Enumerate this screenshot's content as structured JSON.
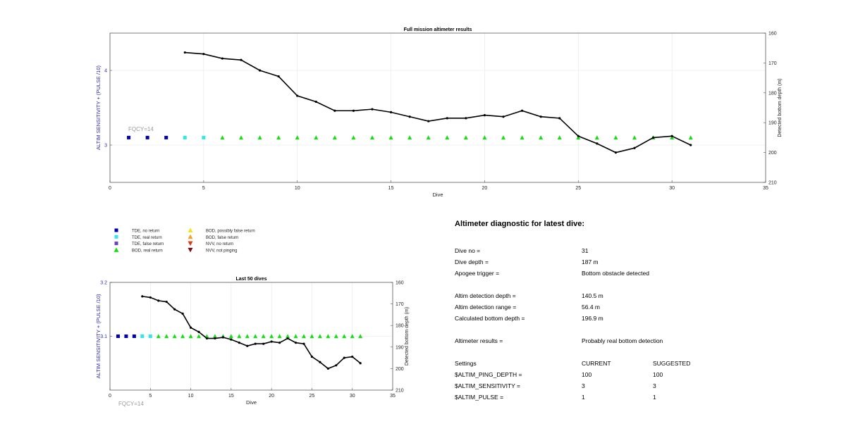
{
  "charts": {
    "main": {
      "title": "Full mission altimeter results",
      "xlabel": "Dive",
      "ylabel_left": "ALTIM SENSITIVITY + (PULSE /10)",
      "ylabel_right": "Detected bottom depth (m)",
      "annotation": "FQCY=14",
      "x_ticks": [
        "0",
        "5",
        "10",
        "15",
        "20",
        "25",
        "30",
        "35"
      ],
      "y_left_ticks": [
        "3",
        "4"
      ],
      "y_right_ticks": [
        "160",
        "170",
        "180",
        "190",
        "200",
        "210"
      ]
    },
    "small": {
      "title": "Last 50 dives",
      "xlabel": "Dive",
      "ylabel_left": "ALTIM SENSITIVITY + (PULSE /10)",
      "ylabel_right": "Detected bottom depth (m)",
      "annotation": "FQCY=14",
      "x_ticks": [
        "0",
        "5",
        "10",
        "15",
        "20",
        "25",
        "30",
        "35"
      ],
      "y_left_ticks": [
        "3.1",
        "3.2"
      ],
      "y_right_ticks": [
        "160",
        "170",
        "180",
        "190",
        "200",
        "210"
      ]
    }
  },
  "legend": [
    {
      "label": "TDE, no return",
      "marker": "square",
      "color": "#0000b4"
    },
    {
      "label": "TDE, real return",
      "marker": "square",
      "color": "#2fe8e8"
    },
    {
      "label": "TDE, false return",
      "marker": "square",
      "color": "#6a3fc8"
    },
    {
      "label": "BOD, real return",
      "marker": "triangle-up",
      "color": "#17dd17"
    },
    {
      "label": "BOD, possibly false return",
      "marker": "triangle-up",
      "color": "#f2e11e"
    },
    {
      "label": "BOD, false return",
      "marker": "triangle-up",
      "color": "#f5a31b"
    },
    {
      "label": "NVV, no return",
      "marker": "triangle-down",
      "color": "#d83a18"
    },
    {
      "label": "NVV, not pinging",
      "marker": "triangle-down",
      "color": "#7a1010"
    }
  ],
  "chart_data": [
    {
      "type": "scatter",
      "title": "Full mission altimeter results",
      "xlabel": "Dive",
      "ylabel": "ALTIM SENSITIVITY + (PULSE /10)",
      "ylabel_right": "Detected bottom depth (m)",
      "xlim": [
        0,
        35
      ],
      "ylim_right": [
        160,
        210
      ],
      "y_right_reversed": true,
      "grid": true,
      "series": [
        {
          "name": "TDE, no return",
          "color": "#0000b4",
          "marker": "square",
          "x": [
            1,
            2,
            3
          ],
          "y": [
            3.1,
            3.1,
            3.1
          ]
        },
        {
          "name": "TDE, real return",
          "color": "#2fe8e8",
          "marker": "square",
          "x": [
            4,
            5
          ],
          "y": [
            3.1,
            3.1
          ]
        },
        {
          "name": "BOD, real return",
          "color": "#17dd17",
          "marker": "triangle-up",
          "x": [
            6,
            7,
            8,
            9,
            10,
            11,
            12,
            13,
            14,
            15,
            16,
            17,
            18,
            19,
            20,
            21,
            22,
            23,
            24,
            25,
            26,
            27,
            28,
            29,
            30,
            31
          ],
          "y": [
            3.1,
            3.1,
            3.1,
            3.1,
            3.1,
            3.1,
            3.1,
            3.1,
            3.1,
            3.1,
            3.1,
            3.1,
            3.1,
            3.1,
            3.1,
            3.1,
            3.1,
            3.1,
            3.1,
            3.1,
            3.1,
            3.1,
            3.1,
            3.1,
            3.1,
            3.1
          ]
        },
        {
          "color": "#000000",
          "marker": "line",
          "axis": "right",
          "x": [
            4,
            5,
            6,
            7,
            8,
            9,
            10,
            11,
            12,
            13,
            14,
            15,
            16,
            17,
            18,
            19,
            20,
            21,
            22,
            23,
            24,
            25,
            26,
            27,
            28,
            29,
            30,
            31
          ],
          "y": [
            166.5,
            167,
            168.5,
            169,
            172.5,
            174.5,
            181,
            183,
            186,
            186,
            185.5,
            186.5,
            188,
            189.5,
            188.5,
            188.5,
            187.5,
            188,
            186,
            188,
            188.5,
            194.5,
            197,
            200,
            198.5,
            195,
            194.5,
            197.5
          ]
        }
      ]
    },
    {
      "type": "scatter",
      "title": "Last 50 dives",
      "xlabel": "Dive",
      "ylabel": "ALTIM SENSITIVITY + (PULSE /10)",
      "ylabel_right": "Detected bottom depth (m)",
      "xlim": [
        0,
        35
      ],
      "ylim_right": [
        160,
        210
      ],
      "y_right_reversed": true,
      "grid": true,
      "series": [
        {
          "name": "TDE, no return",
          "color": "#0000b4",
          "marker": "square",
          "x": [
            1,
            2,
            3
          ],
          "y": [
            3.1,
            3.1,
            3.1
          ]
        },
        {
          "name": "TDE, real return",
          "color": "#2fe8e8",
          "marker": "square",
          "x": [
            4,
            5
          ],
          "y": [
            3.1,
            3.1
          ]
        },
        {
          "name": "BOD, real return",
          "color": "#17dd17",
          "marker": "triangle-up",
          "x": [
            6,
            7,
            8,
            9,
            10,
            11,
            12,
            13,
            14,
            15,
            16,
            17,
            18,
            19,
            20,
            21,
            22,
            23,
            24,
            25,
            26,
            27,
            28,
            29,
            30,
            31
          ],
          "y": [
            3.1,
            3.1,
            3.1,
            3.1,
            3.1,
            3.1,
            3.1,
            3.1,
            3.1,
            3.1,
            3.1,
            3.1,
            3.1,
            3.1,
            3.1,
            3.1,
            3.1,
            3.1,
            3.1,
            3.1,
            3.1,
            3.1,
            3.1,
            3.1,
            3.1,
            3.1
          ]
        },
        {
          "color": "#000000",
          "marker": "line",
          "axis": "right",
          "x": [
            4,
            5,
            6,
            7,
            8,
            9,
            10,
            11,
            12,
            13,
            14,
            15,
            16,
            17,
            18,
            19,
            20,
            21,
            22,
            23,
            24,
            25,
            26,
            27,
            28,
            29,
            30,
            31
          ],
          "y": [
            166.5,
            167,
            168.5,
            169,
            172.5,
            174.5,
            181,
            183,
            186,
            186,
            185.5,
            186.5,
            188,
            189.5,
            188.5,
            188.5,
            187.5,
            188,
            186,
            188,
            188.5,
            194.5,
            197,
            200,
            198.5,
            195,
            194.5,
            197.5
          ]
        }
      ]
    }
  ],
  "diagnostic": {
    "title": "Altimeter diagnostic for latest dive:",
    "dive_no_label": "Dive no =",
    "dive_no": "31",
    "dive_depth_label": "Dive depth =",
    "dive_depth": "187 m",
    "apogee_label": "Apogee trigger =",
    "apogee": "Bottom obstacle detected",
    "altim_det_depth_label": "Altim detection depth =",
    "altim_det_depth": "140.5 m",
    "altim_det_range_label": "Altim detection range =",
    "altim_det_range": "56.4 m",
    "calc_bottom_label": "Calculated bottom depth =",
    "calc_bottom": "196.9 m",
    "results_label": "Altimeter results =",
    "results": "Probably real bottom detection",
    "settings_label": "Settings",
    "current_label": "CURRENT",
    "suggested_label": "SUGGESTED",
    "ping_depth_label": "$ALTIM_PING_DEPTH =",
    "ping_depth_current": "100",
    "ping_depth_suggested": "100",
    "sensitivity_label": "$ALTIM_SENSITIVITY =",
    "sensitivity_current": "3",
    "sensitivity_suggested": "3",
    "pulse_label": "$ALTIM_PULSE =",
    "pulse_current": "1",
    "pulse_suggested": "1"
  }
}
